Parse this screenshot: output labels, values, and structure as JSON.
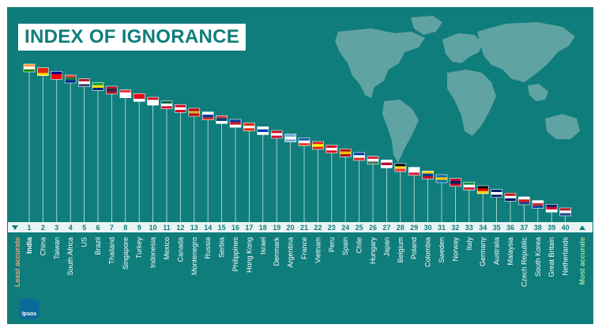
{
  "title": "INDEX OF IGNORANCE",
  "logo_text": "Ipsos",
  "colors": {
    "background": "#0f7d7b",
    "map": "#5fa3a2",
    "stem": "#c9e4e3",
    "rank_band": "#eaf4f4",
    "least_label": "#f2a07a",
    "most_label": "#9fe09a"
  },
  "chart_data": {
    "type": "lollipop",
    "title": "INDEX OF IGNORANCE",
    "left_end_label": "Least accurate",
    "right_end_label": "Most accurate",
    "categories": [
      "India",
      "China",
      "Taiwan",
      "South Africa",
      "US",
      "Brazil",
      "Thailand",
      "Singapore",
      "Turkey",
      "Indonesia",
      "Mexico",
      "Canada",
      "Montenegro",
      "Russia",
      "Serbia",
      "Philippines",
      "Hong Kong",
      "Israel",
      "Denmark",
      "Argentina",
      "France",
      "Vietnam",
      "Peru",
      "Spain",
      "Chile",
      "Hungary",
      "Japan",
      "Belgium",
      "Poland",
      "Colombia",
      "Sweden",
      "Norway",
      "Italy",
      "Germany",
      "Australia",
      "Malaysia",
      "Czech Republic",
      "South Korea",
      "Great Britain",
      "Netherlands"
    ],
    "ranks": [
      1,
      2,
      3,
      4,
      5,
      6,
      7,
      8,
      9,
      10,
      11,
      12,
      13,
      14,
      15,
      16,
      17,
      18,
      19,
      20,
      21,
      22,
      23,
      24,
      25,
      26,
      27,
      28,
      29,
      30,
      31,
      32,
      33,
      34,
      35,
      36,
      37,
      38,
      39,
      40
    ],
    "flag_colors": [
      [
        "#ff9933",
        "#ffffff",
        "#138808"
      ],
      [
        "#de2910",
        "#de2910",
        "#ffde00"
      ],
      [
        "#000095",
        "#fe0000",
        "#fe0000"
      ],
      [
        "#de3831",
        "#007a4d",
        "#002395"
      ],
      [
        "#b22234",
        "#ffffff",
        "#3c3b6e"
      ],
      [
        "#009c3b",
        "#ffdf00",
        "#002776"
      ],
      [
        "#a51931",
        "#2d2a4a",
        "#a51931"
      ],
      [
        "#ef3340",
        "#ffffff",
        "#ffffff"
      ],
      [
        "#e30a17",
        "#e30a17",
        "#ffffff"
      ],
      [
        "#ce1126",
        "#ffffff",
        "#ffffff"
      ],
      [
        "#006847",
        "#ffffff",
        "#ce1126"
      ],
      [
        "#d80621",
        "#ffffff",
        "#d80621"
      ],
      [
        "#c40308",
        "#d4af3a",
        "#c40308"
      ],
      [
        "#ffffff",
        "#0039a6",
        "#d52b1e"
      ],
      [
        "#c6363c",
        "#0c4076",
        "#ffffff"
      ],
      [
        "#0038a8",
        "#ce1126",
        "#ffffff"
      ],
      [
        "#de2910",
        "#ffffff",
        "#de2910"
      ],
      [
        "#ffffff",
        "#0038b8",
        "#ffffff"
      ],
      [
        "#c8102e",
        "#ffffff",
        "#c8102e"
      ],
      [
        "#74acdf",
        "#ffffff",
        "#74acdf"
      ],
      [
        "#0055a4",
        "#ffffff",
        "#ef4135"
      ],
      [
        "#da251d",
        "#ffff00",
        "#da251d"
      ],
      [
        "#d91023",
        "#ffffff",
        "#d91023"
      ],
      [
        "#aa151b",
        "#f1bf00",
        "#aa151b"
      ],
      [
        "#0039a6",
        "#ffffff",
        "#d52b1e"
      ],
      [
        "#cd2a3e",
        "#ffffff",
        "#436f4d"
      ],
      [
        "#ffffff",
        "#bc002d",
        "#ffffff"
      ],
      [
        "#000000",
        "#fdda24",
        "#ef3340"
      ],
      [
        "#ffffff",
        "#ffffff",
        "#dc143c"
      ],
      [
        "#fcd116",
        "#003893",
        "#ce1126"
      ],
      [
        "#006aa7",
        "#fecc00",
        "#006aa7"
      ],
      [
        "#ba0c2f",
        "#00205b",
        "#ba0c2f"
      ],
      [
        "#009246",
        "#ffffff",
        "#ce2b37"
      ],
      [
        "#000000",
        "#dd0000",
        "#ffce00"
      ],
      [
        "#012169",
        "#ffffff",
        "#012169"
      ],
      [
        "#cc0001",
        "#ffffff",
        "#010066"
      ],
      [
        "#ffffff",
        "#d7141a",
        "#11457e"
      ],
      [
        "#ffffff",
        "#cd2e3a",
        "#0047a0"
      ],
      [
        "#012169",
        "#c8102e",
        "#ffffff"
      ],
      [
        "#ae1c28",
        "#ffffff",
        "#21468b"
      ]
    ]
  }
}
